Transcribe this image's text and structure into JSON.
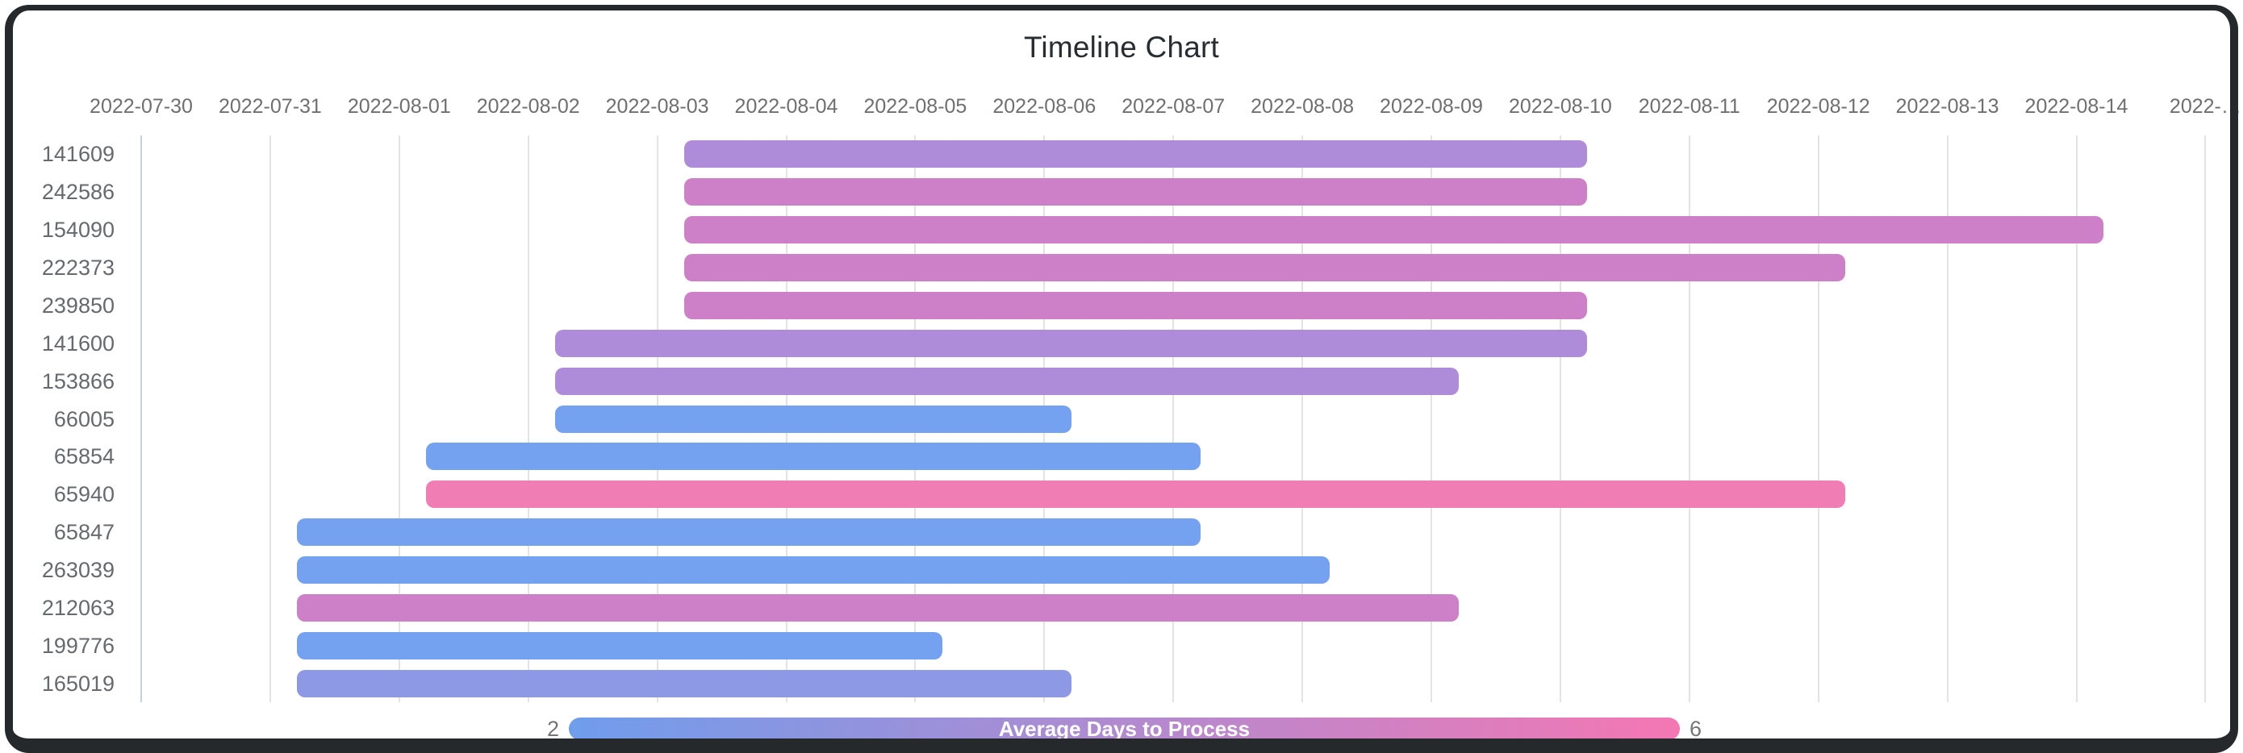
{
  "chart_data": {
    "type": "bar",
    "subtype": "timeline-gantt",
    "title": "Timeline Chart",
    "x_axis": {
      "position": "top",
      "tick_labels": [
        "2022-07-30",
        "2022-07-31",
        "2022-08-01",
        "2022-08-02",
        "2022-08-03",
        "2022-08-04",
        "2022-08-05",
        "2022-08-06",
        "2022-08-07",
        "2022-08-08",
        "2022-08-09",
        "2022-08-10",
        "2022-08-11",
        "2022-08-12",
        "2022-08-13",
        "2022-08-14",
        "2022-…"
      ],
      "epoch": "2022-07-30"
    },
    "rows": [
      {
        "id": "141609",
        "start": "2022-08-03",
        "end": "2022-08-10",
        "duration_days": 7,
        "color": "#AE8CDA",
        "avg_days_to_process_est": 4
      },
      {
        "id": "242586",
        "start": "2022-08-03",
        "end": "2022-08-10",
        "duration_days": 7,
        "color": "#CD7FC8",
        "avg_days_to_process_est": 5
      },
      {
        "id": "154090",
        "start": "2022-08-03",
        "end": "2022-08-14",
        "duration_days": 11,
        "color": "#CD7FC8",
        "avg_days_to_process_est": 5
      },
      {
        "id": "222373",
        "start": "2022-08-03",
        "end": "2022-08-12",
        "duration_days": 9,
        "color": "#CD7FC8",
        "avg_days_to_process_est": 5
      },
      {
        "id": "239850",
        "start": "2022-08-03",
        "end": "2022-08-10",
        "duration_days": 7,
        "color": "#CD7FC8",
        "avg_days_to_process_est": 5
      },
      {
        "id": "141600",
        "start": "2022-08-02",
        "end": "2022-08-10",
        "duration_days": 8,
        "color": "#AE8CDA",
        "avg_days_to_process_est": 4
      },
      {
        "id": "153866",
        "start": "2022-08-02",
        "end": "2022-08-09",
        "duration_days": 7,
        "color": "#AE8CDA",
        "avg_days_to_process_est": 4
      },
      {
        "id": "66005",
        "start": "2022-08-02",
        "end": "2022-08-06",
        "duration_days": 4,
        "color": "#74A1F0",
        "avg_days_to_process_est": 2
      },
      {
        "id": "65854",
        "start": "2022-08-01",
        "end": "2022-08-07",
        "duration_days": 6,
        "color": "#74A1F0",
        "avg_days_to_process_est": 2
      },
      {
        "id": "65940",
        "start": "2022-08-01",
        "end": "2022-08-12",
        "duration_days": 11,
        "color": "#F07EB4",
        "avg_days_to_process_est": 6
      },
      {
        "id": "65847",
        "start": "2022-07-31",
        "end": "2022-08-07",
        "duration_days": 7,
        "color": "#74A1F0",
        "avg_days_to_process_est": 2
      },
      {
        "id": "263039",
        "start": "2022-07-31",
        "end": "2022-08-08",
        "duration_days": 8,
        "color": "#74A1F0",
        "avg_days_to_process_est": 2
      },
      {
        "id": "212063",
        "start": "2022-07-31",
        "end": "2022-08-09",
        "duration_days": 9,
        "color": "#CD7FC8",
        "avg_days_to_process_est": 5
      },
      {
        "id": "199776",
        "start": "2022-07-31",
        "end": "2022-08-05",
        "duration_days": 5,
        "color": "#74A1F0",
        "avg_days_to_process_est": 2
      },
      {
        "id": "165019",
        "start": "2022-07-31",
        "end": "2022-08-06",
        "duration_days": 6,
        "color": "#8D99E4",
        "avg_days_to_process_est": 3
      }
    ],
    "legend": {
      "label": "Average Days to Process",
      "min": "2",
      "max": "6",
      "color_min": "#6F9DEC",
      "color_max": "#F477B3"
    }
  }
}
